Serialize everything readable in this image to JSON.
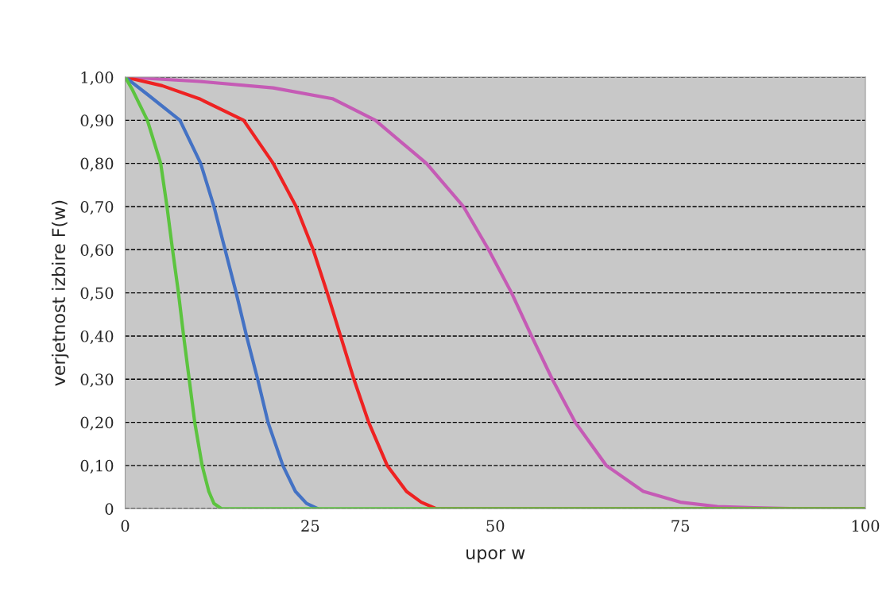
{
  "chart_data": {
    "type": "line",
    "xlabel": "upor w",
    "ylabel": "verjetnost izbire F(w)",
    "xlim": [
      0,
      100
    ],
    "xticks": [
      0,
      25,
      50,
      75,
      100
    ],
    "ylim": [
      0,
      1
    ],
    "yticks": [
      {
        "value": 0,
        "label": "0"
      },
      {
        "value": 0.1,
        "label": "0,10"
      },
      {
        "value": 0.2,
        "label": "0,20"
      },
      {
        "value": 0.3,
        "label": "0,30"
      },
      {
        "value": 0.4,
        "label": "0,40"
      },
      {
        "value": 0.5,
        "label": "0,50"
      },
      {
        "value": 0.6,
        "label": "0,60"
      },
      {
        "value": 0.7,
        "label": "0,70"
      },
      {
        "value": 0.8,
        "label": "0,80"
      },
      {
        "value": 0.9,
        "label": "0,90"
      },
      {
        "value": 1,
        "label": "1,00"
      }
    ],
    "grid": "y",
    "legend": false,
    "marker": "none",
    "line_style": "solid",
    "series": [
      {
        "color": "#c55bb5",
        "x": [
          0,
          10,
          20,
          28,
          33.8,
          40.7,
          45.7,
          49.1,
          52.2,
          54.9,
          57.7,
          60.8,
          65.0,
          70,
          75,
          80,
          85,
          91,
          100
        ],
        "values": [
          1,
          0.99,
          0.975,
          0.95,
          0.9,
          0.8,
          0.7,
          0.6,
          0.5,
          0.4,
          0.3,
          0.2,
          0.1,
          0.04,
          0.015,
          0.005,
          0.002,
          0,
          0
        ]
      },
      {
        "color": "#ee2222",
        "x": [
          0,
          5,
          10,
          16.0,
          20.0,
          23.1,
          25.4,
          27.3,
          29.1,
          30.9,
          32.9,
          35.4,
          38,
          40,
          42,
          100
        ],
        "values": [
          1,
          0.98,
          0.95,
          0.9,
          0.8,
          0.7,
          0.6,
          0.5,
          0.4,
          0.3,
          0.2,
          0.1,
          0.04,
          0.015,
          0,
          0
        ]
      },
      {
        "color": "#4472c4",
        "x": [
          0,
          3,
          7.4,
          10.2,
          12.0,
          13.5,
          15.0,
          16.4,
          17.9,
          19.3,
          21.3,
          23,
          24.5,
          26
        ],
        "values": [
          1,
          0.96,
          0.9,
          0.8,
          0.7,
          0.6,
          0.5,
          0.4,
          0.3,
          0.2,
          0.1,
          0.04,
          0.012,
          0
        ]
      },
      {
        "color": "#5cc43f",
        "x": [
          0,
          1,
          3.0,
          4.8,
          5.65,
          6.4,
          7.2,
          7.9,
          8.65,
          9.4,
          10.4,
          11.3,
          12.0,
          13,
          100
        ],
        "values": [
          1,
          0.97,
          0.9,
          0.8,
          0.7,
          0.6,
          0.5,
          0.4,
          0.3,
          0.2,
          0.1,
          0.04,
          0.012,
          0,
          0
        ]
      }
    ]
  }
}
